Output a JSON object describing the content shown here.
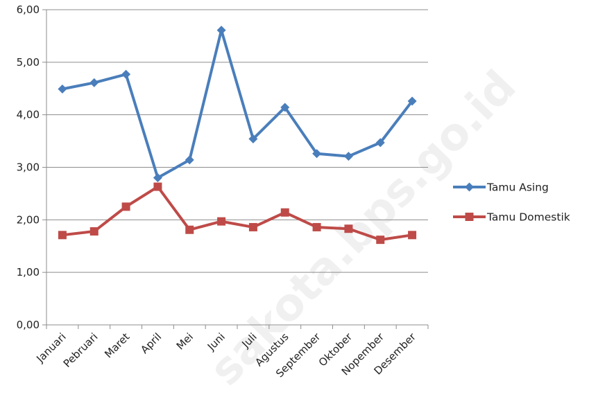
{
  "chart_data": {
    "type": "line",
    "categories": [
      "Januari",
      "Pebruari",
      "Maret",
      "April",
      "Mei",
      "Juni",
      "Juli",
      "Agustus",
      "September",
      "Oktober",
      "Nopember",
      "Desember"
    ],
    "series": [
      {
        "name": "Tamu Asing",
        "color": "#4A7EBB",
        "marker": "diamond",
        "values": [
          4.49,
          4.61,
          4.77,
          2.8,
          3.14,
          5.61,
          3.54,
          4.14,
          3.26,
          3.21,
          3.47,
          4.26
        ]
      },
      {
        "name": "Tamu Domestik",
        "color": "#BE4B48",
        "marker": "square",
        "values": [
          1.71,
          1.78,
          2.25,
          2.63,
          1.81,
          1.97,
          1.86,
          2.14,
          1.86,
          1.83,
          1.62,
          1.71
        ]
      }
    ],
    "y_ticks": [
      "0,00",
      "1,00",
      "2,00",
      "3,00",
      "4,00",
      "5,00",
      "6,00"
    ],
    "ylim": [
      0,
      6
    ],
    "grid": true,
    "legend_position": "right"
  },
  "watermark": "sakota.bps.go.id"
}
